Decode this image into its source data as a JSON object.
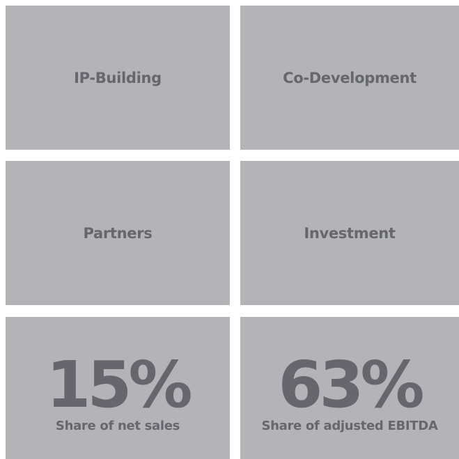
{
  "tiles": [
    {
      "label": "IP-Building"
    },
    {
      "label": "Co-Development"
    },
    {
      "label": "Partners"
    },
    {
      "label": "Investment"
    }
  ],
  "stats": [
    {
      "value": "15%",
      "label": "Share of net sales"
    },
    {
      "value": "63%",
      "label": "Share of adjusted EBITDA"
    }
  ]
}
